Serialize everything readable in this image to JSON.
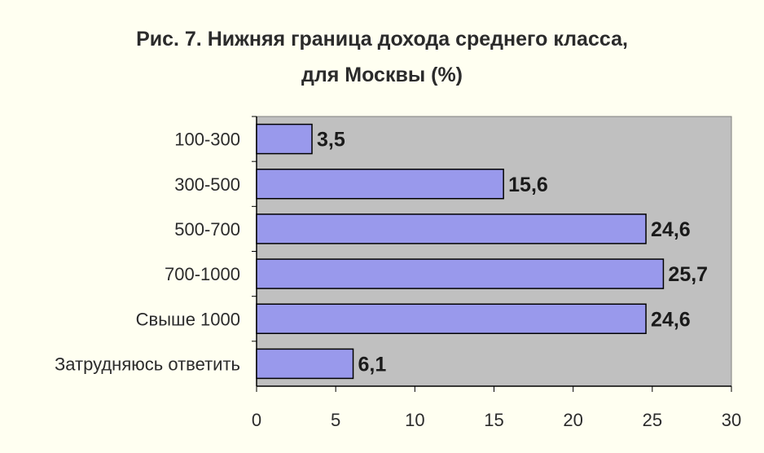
{
  "chart_data": {
    "type": "bar",
    "orientation": "horizontal",
    "title_lines": [
      "Рис. 7. Нижняя граница дохода среднего класса,",
      "для Москвы (%)"
    ],
    "categories": [
      "100-300",
      "300-500",
      "500-700",
      "700-1000",
      "Свыше 1000",
      "Затрудняюсь ответить"
    ],
    "values": [
      3.5,
      15.6,
      24.6,
      25.7,
      24.6,
      6.1
    ],
    "value_labels": [
      "3,5",
      "15,6",
      "24,6",
      "25,7",
      "24,6",
      "6,1"
    ],
    "xlim": [
      0,
      30
    ],
    "xticks": [
      0,
      5,
      10,
      15,
      20,
      25,
      30
    ],
    "xlabel": "",
    "ylabel": "",
    "grid": false,
    "legend": "none",
    "colors": {
      "plot_background": "#c0c0c0",
      "bar_fill": "#9999ec",
      "bar_stroke": "#000000",
      "page_background": "#fffff1"
    }
  }
}
